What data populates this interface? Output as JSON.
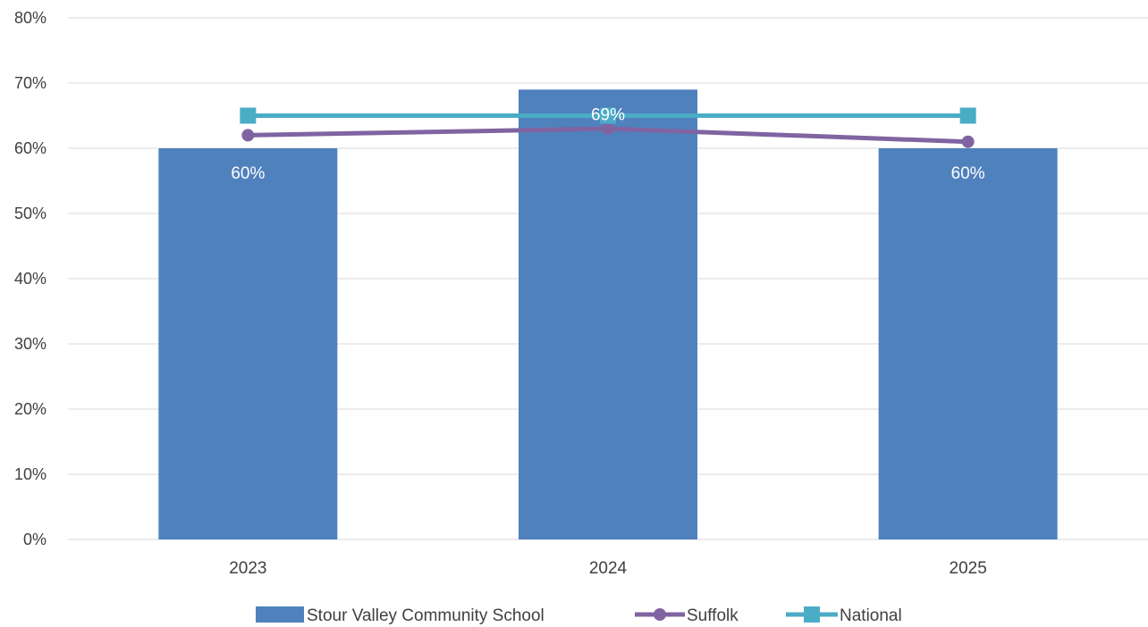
{
  "chart_data": {
    "type": "bar",
    "categories": [
      "2023",
      "2024",
      "2025"
    ],
    "series": [
      {
        "name": "Stour Valley Community School",
        "kind": "bar",
        "values": [
          60,
          69,
          60
        ],
        "data_labels": [
          "60%",
          "69%",
          "60%"
        ]
      },
      {
        "name": "Suffolk",
        "kind": "line",
        "marker": "circle",
        "values": [
          62,
          63,
          61
        ]
      },
      {
        "name": "National",
        "kind": "line",
        "marker": "square",
        "values": [
          65,
          65,
          65
        ]
      }
    ],
    "y_ticks": [
      "0%",
      "10%",
      "20%",
      "30%",
      "40%",
      "50%",
      "60%",
      "70%",
      "80%"
    ],
    "ylim": [
      0,
      80
    ],
    "grid": true,
    "legend_position": "bottom",
    "colors": {
      "bar": "#4F81BD",
      "suffolk": "#8064A2",
      "national": "#4BACC6",
      "grid": "#D9D9D9",
      "text": "#404040"
    }
  }
}
